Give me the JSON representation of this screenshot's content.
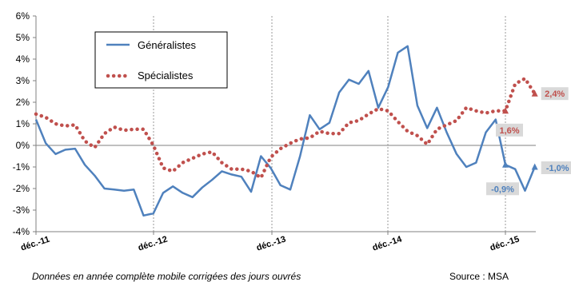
{
  "chart_data": {
    "type": "line",
    "x_tick_labels": [
      "déc.-11",
      "déc.-12",
      "déc.-13",
      "déc.-14",
      "déc.-15"
    ],
    "y_tick_labels": [
      "6%",
      "5%",
      "4%",
      "3%",
      "2%",
      "1%",
      "0%",
      "-1%",
      "-2%",
      "-3%",
      "-4%"
    ],
    "ylim": [
      -4,
      6
    ],
    "series": [
      {
        "name": "Généralistes",
        "color": "#4f81bd",
        "style": "solid",
        "values": [
          1.2,
          0.1,
          -0.4,
          -0.2,
          -0.15,
          -0.9,
          -1.4,
          -2.0,
          -2.05,
          -2.1,
          -2.05,
          -3.25,
          -3.15,
          -2.2,
          -1.9,
          -2.2,
          -2.4,
          -1.95,
          -1.6,
          -1.2,
          -1.35,
          -1.45,
          -2.15,
          -0.5,
          -1.05,
          -1.85,
          -2.05,
          -0.5,
          1.4,
          0.75,
          1.05,
          2.45,
          3.05,
          2.85,
          3.45,
          1.75,
          2.7,
          4.3,
          4.6,
          1.85,
          0.8,
          1.75,
          0.6,
          -0.4,
          -1.0,
          -0.8,
          0.6,
          1.2,
          -0.9,
          -1.1,
          -2.1,
          -1.0
        ]
      },
      {
        "name": "Spécialistes",
        "color": "#c0504d",
        "style": "dotted",
        "values": [
          1.45,
          1.3,
          1.0,
          0.9,
          0.95,
          0.2,
          -0.1,
          0.55,
          0.85,
          0.7,
          0.75,
          0.75,
          0.0,
          -1.05,
          -1.2,
          -0.8,
          -0.6,
          -0.4,
          -0.3,
          -0.8,
          -1.1,
          -1.1,
          -1.2,
          -1.5,
          -0.55,
          -0.15,
          0.1,
          0.3,
          0.35,
          0.65,
          0.55,
          0.55,
          1.05,
          1.15,
          1.45,
          1.7,
          1.6,
          1.1,
          0.65,
          0.45,
          0.05,
          0.75,
          0.95,
          1.15,
          1.75,
          1.6,
          1.5,
          1.6,
          1.6,
          2.85,
          3.1,
          2.4
        ]
      }
    ],
    "annotations": [
      {
        "text": "2,4%",
        "series": 1,
        "point": 51
      },
      {
        "text": "1,6%",
        "series": 1,
        "point": 48
      },
      {
        "text": "-0,9%",
        "series": 0,
        "point": 48
      },
      {
        "text": "-1,0%",
        "series": 0,
        "point": 51
      }
    ],
    "legend_position": "top-left",
    "grid": "vertical dotted lines at each December"
  },
  "footer": {
    "note": "Données en année complète mobile corrigées des jours ouvrés",
    "source": "Source : MSA"
  }
}
